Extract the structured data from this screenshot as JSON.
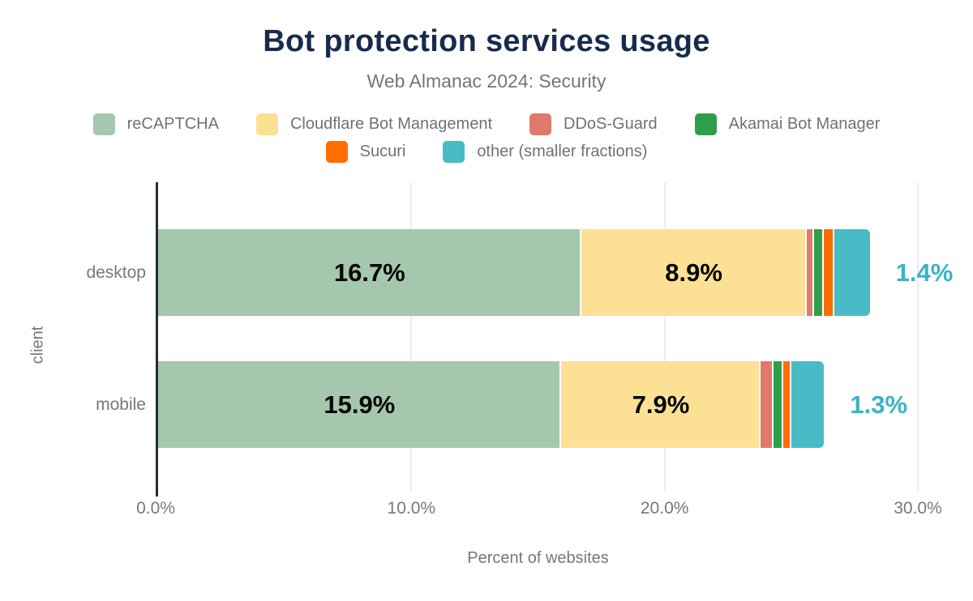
{
  "chart_data": {
    "type": "bar",
    "variant": "horizontal-stacked",
    "title": "Bot protection services usage",
    "subtitle": "Web Almanac 2024: Security",
    "xlabel": "Percent of websites",
    "ylabel": "client",
    "categories": [
      "desktop",
      "mobile"
    ],
    "series": [
      {
        "name": "reCAPTCHA",
        "color": "#a4c7ad",
        "values": [
          16.7,
          15.9
        ],
        "labels": [
          "16.7%",
          "15.9%"
        ],
        "label_placement": "inside"
      },
      {
        "name": "Cloudflare Bot Management",
        "color": "#fce094",
        "values": [
          8.9,
          7.9
        ],
        "labels": [
          "8.9%",
          "7.9%"
        ],
        "label_placement": "inside"
      },
      {
        "name": "DDoS-Guard",
        "color": "#e0796d",
        "values": [
          0.3,
          0.5
        ],
        "labels": null,
        "label_placement": "none"
      },
      {
        "name": "Akamai Bot Manager",
        "color": "#2f9e4b",
        "values": [
          0.4,
          0.4
        ],
        "labels": null,
        "label_placement": "none"
      },
      {
        "name": "Sucuri",
        "color": "#ff6d00",
        "values": [
          0.4,
          0.3
        ],
        "labels": null,
        "label_placement": "none"
      },
      {
        "name": "other (smaller fractions)",
        "color": "#47bcc7",
        "values": [
          1.4,
          1.3
        ],
        "labels": [
          "1.4%",
          "1.3%"
        ],
        "label_placement": "outside"
      }
    ],
    "legend_rows": [
      [
        "reCAPTCHA",
        "Cloudflare Bot Management",
        "DDoS-Guard",
        "Akamai Bot Manager"
      ],
      [
        "Sucuri",
        "other (smaller fractions)"
      ]
    ],
    "x_ticks": [
      {
        "label": "0.0%",
        "value": 0
      },
      {
        "label": "10.0%",
        "value": 10
      },
      {
        "label": "20.0%",
        "value": 20
      },
      {
        "label": "30.0%",
        "value": 30
      }
    ],
    "xlim": [
      0,
      30
    ],
    "grid": true,
    "legend_position": "top",
    "outside_label_color": "#3ab4c3"
  }
}
